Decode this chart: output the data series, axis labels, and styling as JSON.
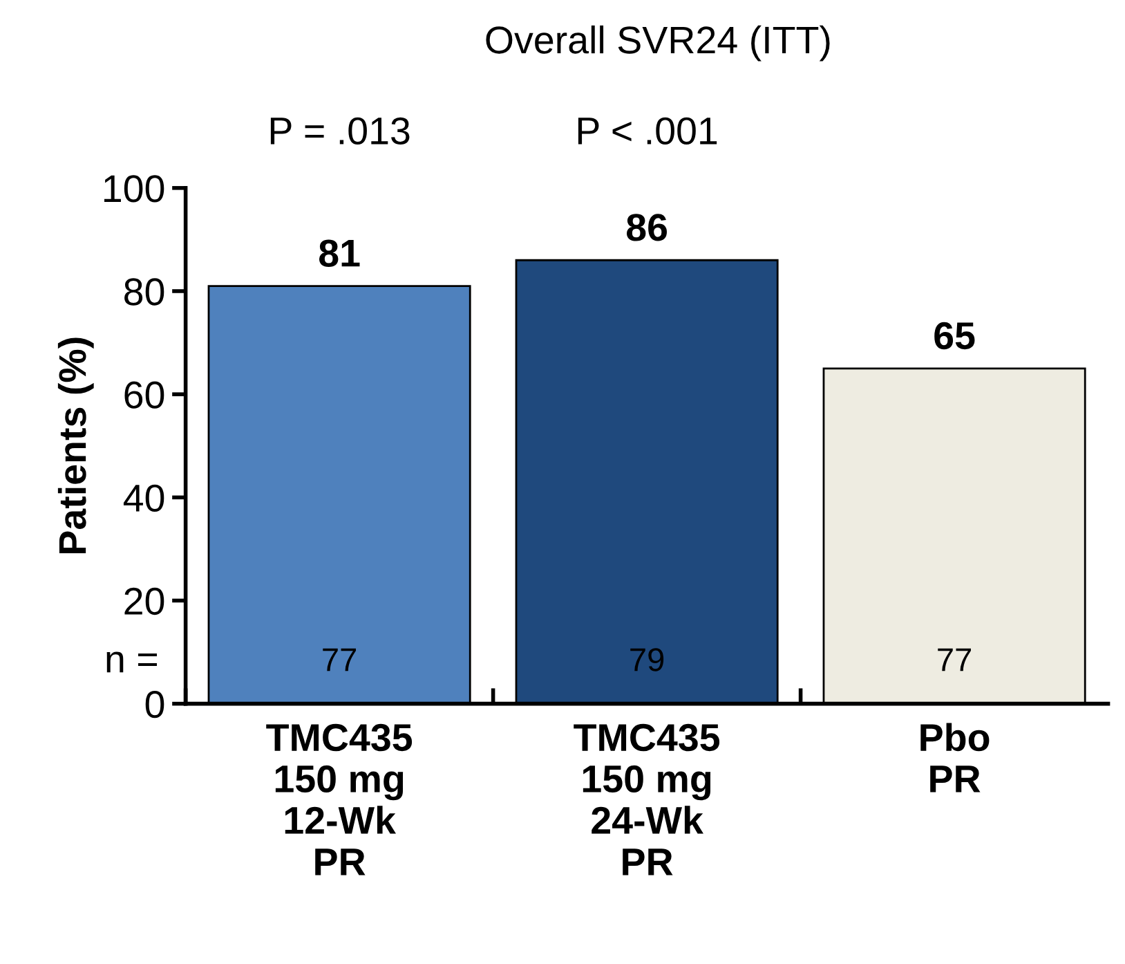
{
  "chart_data": {
    "type": "bar",
    "title": "Overall SVR24 (ITT)",
    "ylabel": "Patients (%)",
    "categories": [
      "TMC435\n150 mg\n12-Wk\nPR",
      "TMC435\n150 mg\n24-Wk\nPR",
      "Pbo\nPR"
    ],
    "values": [
      81,
      86,
      65
    ],
    "colors": [
      "#4f81bd",
      "#1f497d",
      "#eeece1"
    ],
    "ylim": [
      0,
      100
    ],
    "yticks": [
      0,
      20,
      40,
      60,
      80,
      100
    ],
    "grid": false,
    "legend": false,
    "data_labels": true,
    "annotations": [
      "P = .013",
      "P < .001",
      "n =",
      "77",
      "79",
      "77"
    ]
  }
}
